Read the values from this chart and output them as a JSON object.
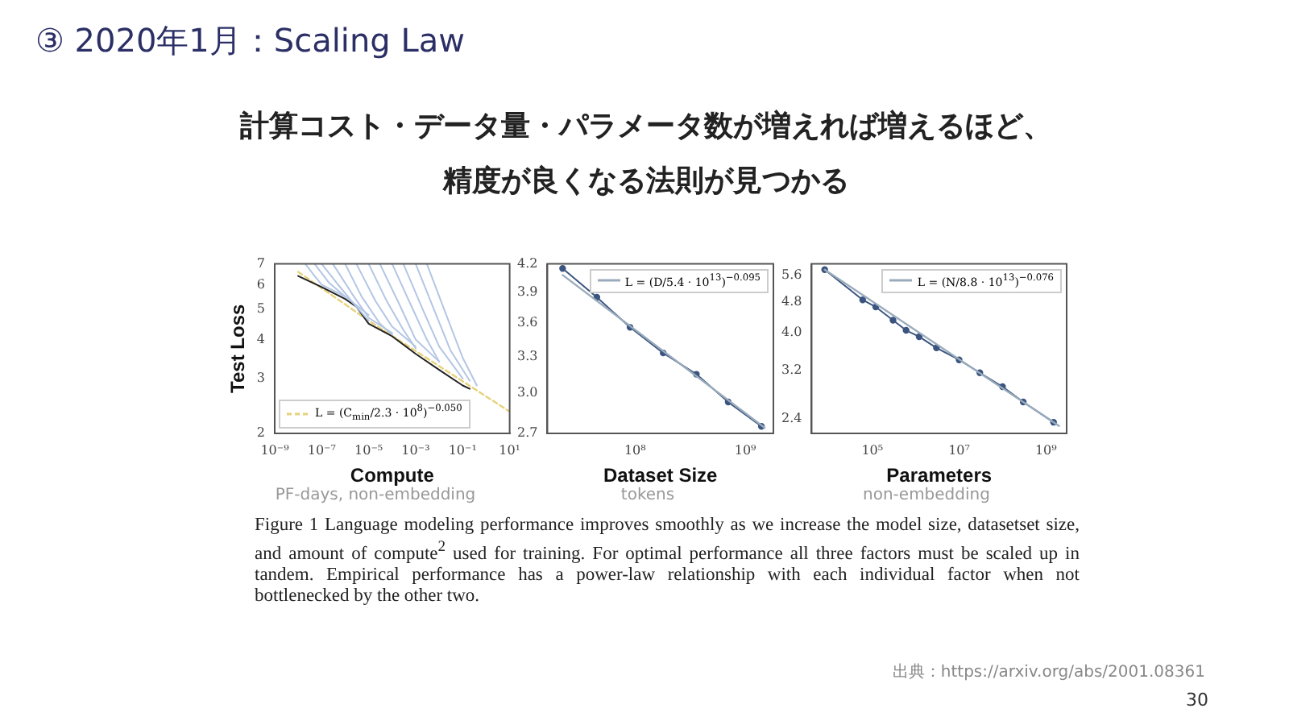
{
  "chart_data": [
    {
      "type": "line",
      "title": "③ 2020年1月：Scaling Law",
      "subtitle": "計算コスト・データ量・パラメータ数が増えれば増えるほど、精度が良くなる法則が見つかる",
      "xlabel": "Compute",
      "ylabel": "Test Loss",
      "log": "xy",
      "legend": "bottom left",
      "xlim": [
        1e-09,
        10
      ],
      "ylim": [
        2,
        7
      ],
      "xticks": [
        {
          "value": 1e-09,
          "label": "10⁻⁹"
        },
        {
          "value": 1e-07,
          "label": "10⁻⁷"
        },
        {
          "value": 1e-05,
          "label": "10⁻⁵"
        },
        {
          "value": 0.001,
          "label": "10⁻³"
        },
        {
          "value": 0.1,
          "label": "10⁻¹"
        },
        {
          "value": 10,
          "label": "10¹"
        }
      ],
      "yticks": [
        2,
        3,
        4,
        5,
        6,
        7
      ],
      "annotations": [
        "PF-days, non-embedding",
        "Figure 1  Language modeling performance improves smoothly as we increase the model size, datasetset size, and amount of compute$^{2}$ used for training. For optimal performance all three factors must be scaled up in tandem. Empirical performance has a power-law relationship with each individual factor when not bottlenecked by the other two.",
        "出典：https://arxiv.org/abs/2001.08361",
        "30"
      ],
      "series": [
        {
          "color": "#b4c6e4",
          "marker": "none",
          "x": [
            2e-08,
            5e-08,
            1e-07,
            1e-06
          ],
          "values": [
            7,
            6.4,
            6.0,
            5.5
          ]
        },
        {
          "color": "#b4c6e4",
          "marker": "none",
          "x": [
            5e-08,
            2e-07,
            1e-06,
            1e-05
          ],
          "values": [
            7,
            6.1,
            5.5,
            4.8
          ]
        },
        {
          "color": "#b4c6e4",
          "marker": "none",
          "x": [
            1e-07,
            5e-07,
            3e-06,
            1e-05
          ],
          "values": [
            7,
            6.0,
            5.1,
            4.6
          ]
        },
        {
          "color": "#b4c6e4",
          "marker": "none",
          "x": [
            3e-07,
            2e-06,
            1e-05,
            0.0001
          ],
          "values": [
            7,
            5.6,
            4.7,
            4.2
          ]
        },
        {
          "color": "#b4c6e4",
          "marker": "none",
          "x": [
            1e-06,
            5e-06,
            3e-05,
            0.0001
          ],
          "values": [
            7,
            5.5,
            4.5,
            4.15
          ]
        },
        {
          "color": "#b4c6e4",
          "marker": "none",
          "x": [
            3e-06,
            2e-05,
            0.0001,
            0.001
          ],
          "values": [
            7,
            5.3,
            4.4,
            3.8
          ]
        },
        {
          "color": "#b4c6e4",
          "marker": "none",
          "x": [
            1e-05,
            6e-05,
            0.0003,
            0.001
          ],
          "values": [
            7,
            5.3,
            4.3,
            3.75
          ]
        },
        {
          "color": "#b4c6e4",
          "marker": "none",
          "x": [
            3e-05,
            0.0002,
            0.001,
            0.01
          ],
          "values": [
            7,
            5.2,
            4.0,
            3.4
          ]
        },
        {
          "color": "#b4c6e4",
          "marker": "none",
          "x": [
            0.0001,
            0.0006,
            0.003,
            0.01
          ],
          "values": [
            7,
            5.2,
            4.0,
            3.4
          ]
        },
        {
          "color": "#b4c6e4",
          "marker": "none",
          "x": [
            0.0003,
            0.002,
            0.01,
            0.1
          ],
          "values": [
            7,
            5.0,
            3.8,
            3.0
          ]
        },
        {
          "color": "#b4c6e4",
          "marker": "none",
          "x": [
            0.001,
            0.006,
            0.03,
            0.2
          ],
          "values": [
            7,
            5.0,
            3.7,
            2.95
          ]
        },
        {
          "color": "#b4c6e4",
          "marker": "none",
          "x": [
            0.003,
            0.02,
            0.1,
            0.4
          ],
          "values": [
            7,
            4.8,
            3.5,
            2.85
          ]
        },
        {
          "color": "#222222",
          "marker": "none",
          "x": [
            1e-08,
            1e-07,
            1e-06,
            3e-06,
            1e-05,
            0.0001,
            0.001,
            0.01,
            0.1,
            0.2
          ],
          "values": [
            6.4,
            5.9,
            5.4,
            5.1,
            4.5,
            4.1,
            3.6,
            3.2,
            2.85,
            2.78
          ]
        },
        {
          "name": "L = (C$_{min}$/2.3 · 10$^{8}$)$^{−0.050}$",
          "color": "#e6d27a",
          "marker": "none",
          "line_style": "dashed",
          "x": [
            1e-08,
            1e-05,
            0.1,
            10
          ],
          "values": [
            6.6,
            4.6,
            2.94,
            2.35
          ]
        }
      ]
    },
    {
      "type": "line",
      "xlabel": "Dataset Size",
      "log": "xy",
      "legend": "top right",
      "xlim": [
        16000000.0,
        1800000000.0
      ],
      "ylim": [
        2.7,
        4.2
      ],
      "xticks": [
        {
          "value": 100000000.0,
          "label": "10⁸"
        },
        {
          "value": 1000000000.0,
          "label": "10⁹"
        }
      ],
      "yticks": [
        {
          "value": 2.7,
          "label": "2.7"
        },
        {
          "value": 3,
          "label": "3.0"
        },
        {
          "value": 3.3,
          "label": "3.3"
        },
        {
          "value": 3.6,
          "label": "3.6"
        },
        {
          "value": 3.9,
          "label": "3.9"
        },
        {
          "value": 4.2,
          "label": "4.2"
        }
      ],
      "annotations": [
        "tokens"
      ],
      "series": [
        {
          "name": "L = (D/5.4 · 10$^{13}$)$^{−0.095}$",
          "color": "#9aabbb",
          "marker": "none",
          "x": [
            22000000.0,
            1500000000.0
          ],
          "values": [
            4.08,
            2.74
          ]
        },
        {
          "color": "#3b5580",
          "marker": "circle",
          "x": [
            22000000.0,
            45000000.0,
            90000000.0,
            180000000.0,
            360000000.0,
            700000000.0,
            1400000000.0
          ],
          "values": [
            4.15,
            3.85,
            3.56,
            3.33,
            3.15,
            2.93,
            2.75
          ]
        }
      ]
    },
    {
      "type": "line",
      "xlabel": "Parameters",
      "log": "xy",
      "legend": "top right",
      "xlim": [
        4000.0,
        3000000000.0
      ],
      "ylim": [
        2.2,
        6.0
      ],
      "xticks": [
        {
          "value": 100000.0,
          "label": "10⁵"
        },
        {
          "value": 10000000.0,
          "label": "10⁷"
        },
        {
          "value": 1000000000.0,
          "label": "10⁹"
        }
      ],
      "yticks": [
        2.4,
        3.2,
        {
          "value": 4,
          "label": "4.0"
        },
        4.8,
        5.6
      ],
      "annotations": [
        "non-embedding"
      ],
      "series": [
        {
          "name": "L = (N/8.8 · 10$^{13}$)$^{−0.076}$",
          "color": "#9aabbb",
          "marker": "none",
          "x": [
            8000.0,
            2000000000.0
          ],
          "values": [
            5.8,
            2.3
          ]
        },
        {
          "color": "#3b5580",
          "marker": "circle",
          "x": [
            8000.0,
            60000.0,
            120000.0,
            300000.0,
            600000.0,
            1200000.0,
            3000000.0,
            10000000.0,
            30000000.0,
            100000000.0,
            300000000.0,
            1500000000.0
          ],
          "values": [
            5.8,
            4.85,
            4.65,
            4.3,
            4.05,
            3.9,
            3.65,
            3.4,
            3.15,
            2.9,
            2.65,
            2.35
          ]
        }
      ]
    }
  ]
}
